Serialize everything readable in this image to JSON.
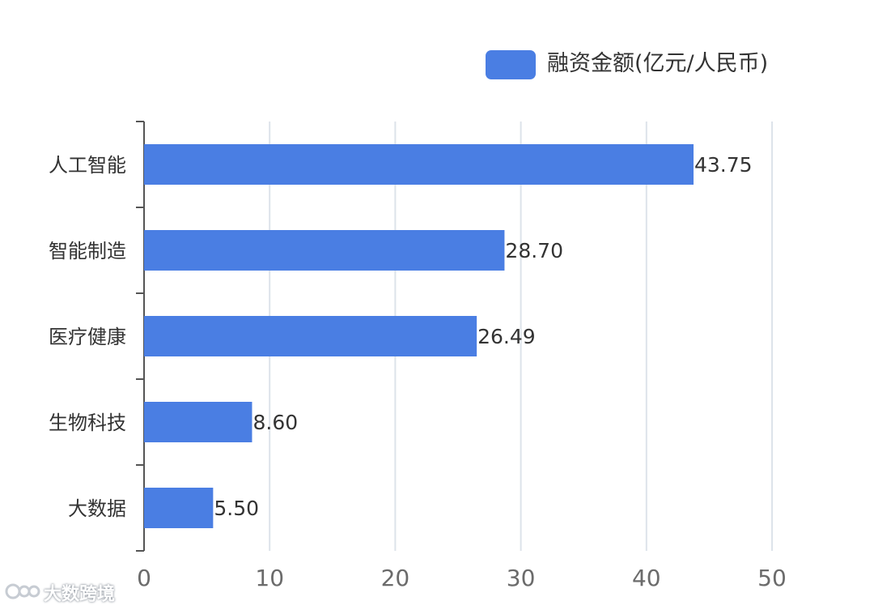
{
  "chart_data": {
    "type": "bar",
    "orientation": "horizontal",
    "categories": [
      "人工智能",
      "智能制造",
      "医疗健康",
      "生物科技",
      "大数据"
    ],
    "series": [
      {
        "name": "融资金额(亿元/人民币)",
        "values": [
          43.75,
          28.7,
          26.49,
          8.6,
          5.5
        ],
        "value_labels": [
          "43.75",
          "28.70",
          "26.49",
          "8.60",
          "5.50"
        ]
      }
    ],
    "xlim": [
      0,
      50
    ],
    "xticks": [
      0,
      10,
      20,
      30,
      40,
      50
    ],
    "xtick_labels": [
      "0",
      "10",
      "20",
      "30",
      "40",
      "50"
    ],
    "grid": "vertical",
    "legend_position": "top-right",
    "colors": {
      "bar": "#4a7ee3",
      "grid": "#dde3ea",
      "axis": "#555555",
      "label": "#333333"
    }
  },
  "legend": {
    "label": "融资金额(亿元/人民币)"
  },
  "watermark": {
    "text": "大数跨境"
  }
}
